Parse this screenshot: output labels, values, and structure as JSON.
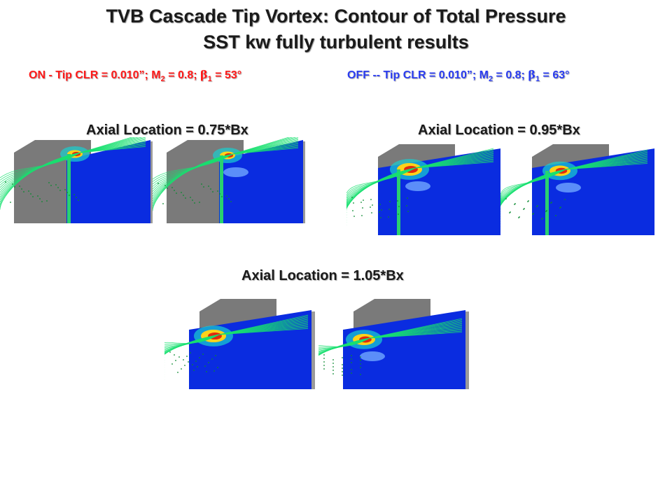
{
  "title": {
    "line1": "TVB Cascade Tip Vortex: Contour of Total Pressure",
    "line2": "SST kw fully turbulent results"
  },
  "conditions": {
    "on": {
      "prefix": "ON - Tip CLR = 0.010”; M",
      "m_sub": "2",
      "mid": " = 0.8; ",
      "beta": "β",
      "b_sub": "1",
      "suffix": " = 53°",
      "color": "#ff1a1a"
    },
    "off": {
      "prefix": "OFF -- Tip CLR = 0.010”; M",
      "m_sub": "2",
      "mid": " = 0.8; ",
      "beta": "β",
      "b_sub": "1",
      "suffix": " = 63°",
      "color": "#2a3cf0"
    }
  },
  "sections": [
    {
      "label": "Axial Location = 0.75*Bx"
    },
    {
      "label": "Axial Location = 0.95*Bx"
    },
    {
      "label": "Axial Location = 1.05*Bx"
    }
  ],
  "colors": {
    "field": "#0a2ce0",
    "blade": "#7a7a7a",
    "hot": "#e02a10",
    "streamline": "#18e070"
  }
}
